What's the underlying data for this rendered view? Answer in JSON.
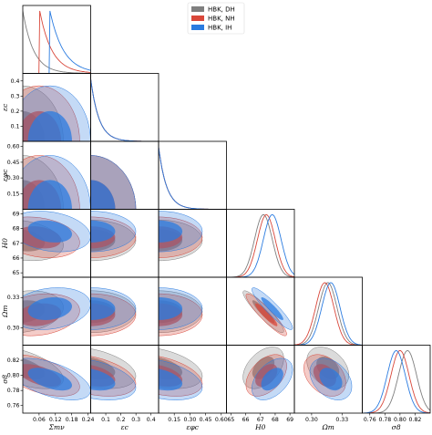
{
  "chart_data": {
    "type": "corner",
    "series": [
      {
        "name": "HBK, DH",
        "color": "#7f7f7f",
        "mean": {
          "sum_mnu": 0.0,
          "eps_c": 0.0,
          "eps_phi_c": 0.0,
          "H0": 67.2,
          "Omega_m": 0.316,
          "sigma8": 0.81
        }
      },
      {
        "name": "HBK, NH",
        "color": "#d9473a",
        "mean": {
          "sum_mnu": 0.06,
          "eps_c": 0.0,
          "eps_phi_c": 0.0,
          "H0": 67.4,
          "Omega_m": 0.313,
          "sigma8": 0.8
        }
      },
      {
        "name": "HBK, IH",
        "color": "#2a7be0",
        "mean": {
          "sum_mnu": 0.1,
          "eps_c": 0.0,
          "eps_phi_c": 0.0,
          "H0": 67.8,
          "Omega_m": 0.319,
          "sigma8": 0.795
        }
      }
    ],
    "parameters": [
      {
        "key": "sum_mnu",
        "label": "Σmν",
        "range": [
          0.0,
          0.25
        ],
        "ticks": [
          "0.06",
          "0.12",
          "0.18",
          "0.24"
        ]
      },
      {
        "key": "eps_c",
        "label": "εc",
        "range": [
          0.0,
          0.45
        ],
        "ticks": [
          "0.1",
          "0.2",
          "0.3",
          "0.4"
        ]
      },
      {
        "key": "eps_phi_c",
        "label": "εφc",
        "range": [
          0.0,
          0.65
        ],
        "ticks": [
          "0.15",
          "0.30",
          "0.45",
          "0.60"
        ]
      },
      {
        "key": "H0",
        "label": "H0",
        "range": [
          64.7,
          69.3
        ],
        "ticks": [
          "65",
          "66",
          "67",
          "68",
          "69"
        ]
      },
      {
        "key": "Omega_m",
        "label": "Ωm",
        "range": [
          0.283,
          0.35
        ],
        "ticks": [
          "0.30",
          "0.33"
        ]
      },
      {
        "key": "sigma8",
        "label": "σ8",
        "range": [
          0.75,
          0.84
        ],
        "ticks": [
          "0.76",
          "0.78",
          "0.80",
          "0.82"
        ]
      }
    ]
  }
}
